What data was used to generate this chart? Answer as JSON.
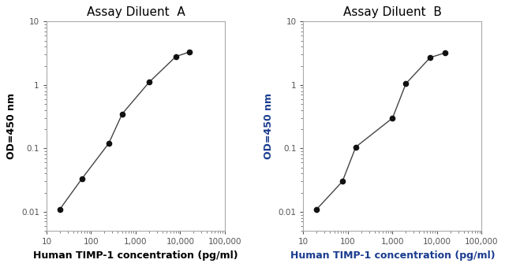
{
  "plot_A": {
    "title": "Assay Diluent  A",
    "x": [
      20,
      62,
      250,
      500,
      2000,
      8000,
      16000
    ],
    "y": [
      0.011,
      0.033,
      0.12,
      0.35,
      1.1,
      2.8,
      3.3
    ],
    "line_color": "#444444",
    "marker_color": "#111111",
    "ylabel": "OD=450 nm",
    "xlabel": "Human TIMP-1 concentration (pg/ml)",
    "ylabel_color": "#000000",
    "xlabel_color": "#000000",
    "ytick_color": "#000000",
    "xtick_color": "#000000",
    "xlim": [
      10,
      100000
    ],
    "ylim": [
      0.005,
      10
    ],
    "xticks": [
      10,
      100,
      1000,
      10000,
      100000
    ],
    "xtick_labels": [
      "10",
      "100",
      "1,000",
      "10,000",
      "100,000"
    ],
    "yticks": [
      0.01,
      0.1,
      1,
      10
    ],
    "ytick_labels": [
      "0.01",
      "0.1",
      "1",
      "10"
    ]
  },
  "plot_B": {
    "title": "Assay Diluent  B",
    "x": [
      20,
      75,
      150,
      1000,
      2000,
      7000,
      15000
    ],
    "y": [
      0.011,
      0.03,
      0.105,
      0.3,
      1.05,
      2.7,
      3.2
    ],
    "line_color": "#444444",
    "marker_color": "#111111",
    "ylabel": "OD=450 nm",
    "xlabel": "Human TIMP-1 concentration (pg/ml)",
    "ylabel_color": "#1a3c8f",
    "xlabel_color": "#1a3c8f",
    "ytick_color": "#1a3c8f",
    "xtick_color": "#1a3c8f",
    "xlim": [
      10,
      100000
    ],
    "ylim": [
      0.005,
      10
    ],
    "xticks": [
      10,
      100,
      1000,
      10000,
      100000
    ],
    "xtick_labels": [
      "10",
      "100",
      "1,000",
      "10,000",
      "100,000"
    ],
    "yticks": [
      0.01,
      0.1,
      1,
      10
    ],
    "ytick_labels": [
      "0.01",
      "0.1",
      "1",
      "10"
    ]
  },
  "title_fontsize": 11,
  "label_fontsize": 9,
  "tick_fontsize": 7.5,
  "title_color": "#000000",
  "axis_color": "#aaaaaa",
  "background_color": "#ffffff",
  "plot_bg_color": "#ffffff"
}
